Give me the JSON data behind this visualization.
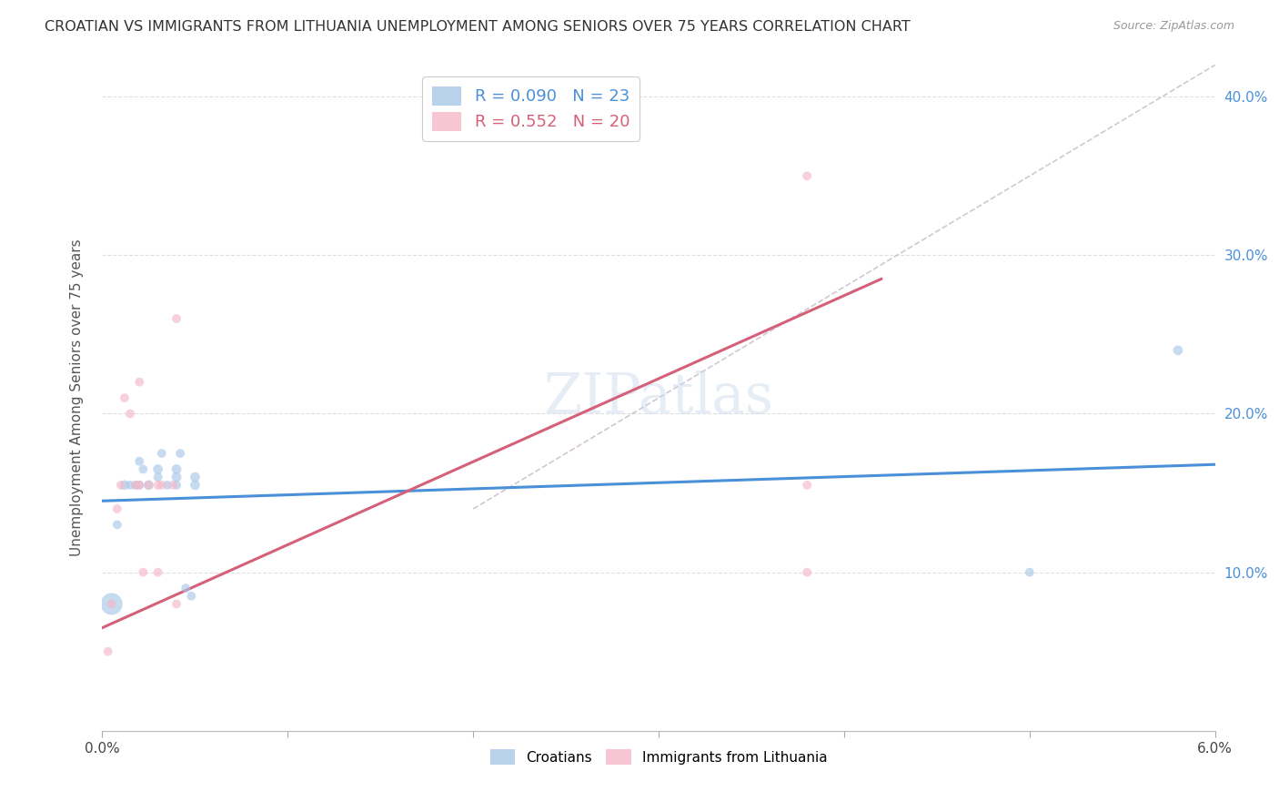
{
  "title": "CROATIAN VS IMMIGRANTS FROM LITHUANIA UNEMPLOYMENT AMONG SENIORS OVER 75 YEARS CORRELATION CHART",
  "source": "Source: ZipAtlas.com",
  "ylabel": "Unemployment Among Seniors over 75 years",
  "xlim": [
    0.0,
    0.06
  ],
  "ylim": [
    0.0,
    0.42
  ],
  "xticks": [
    0.0,
    0.01,
    0.02,
    0.03,
    0.04,
    0.05,
    0.06
  ],
  "xticklabels": [
    "0.0%",
    "",
    "",
    "",
    "",
    "",
    "6.0%"
  ],
  "yticks": [
    0.0,
    0.1,
    0.2,
    0.3,
    0.4
  ],
  "right_ytick_labels": [
    "10.0%",
    "20.0%",
    "30.0%",
    "40.0%"
  ],
  "croatians_R": 0.09,
  "croatians_N": 23,
  "lithuania_R": 0.552,
  "lithuania_N": 20,
  "blue_color": "#a8c8e8",
  "pink_color": "#f4b8c8",
  "blue_line_color": "#4a90d9",
  "pink_line_color": "#d4607a",
  "dashed_line_color": "#c8b8c8",
  "legend_blue_text": "#4a90d9",
  "legend_pink_text": "#d4607a",
  "legend_n_color": "#cc2222",
  "croatians_x": [
    0.0005,
    0.0008,
    0.0012,
    0.0015,
    0.0018,
    0.002,
    0.002,
    0.0022,
    0.0025,
    0.003,
    0.003,
    0.0032,
    0.0035,
    0.004,
    0.004,
    0.004,
    0.0042,
    0.0045,
    0.0048,
    0.005,
    0.005,
    0.05,
    0.058
  ],
  "croatians_y": [
    0.08,
    0.13,
    0.155,
    0.155,
    0.155,
    0.17,
    0.155,
    0.165,
    0.155,
    0.16,
    0.165,
    0.175,
    0.155,
    0.155,
    0.16,
    0.165,
    0.175,
    0.09,
    0.085,
    0.155,
    0.16,
    0.1,
    0.24
  ],
  "croatians_size": [
    300,
    50,
    60,
    50,
    50,
    50,
    50,
    50,
    60,
    50,
    60,
    50,
    50,
    50,
    60,
    60,
    50,
    50,
    50,
    60,
    60,
    50,
    60
  ],
  "lithuanians_x": [
    0.0003,
    0.0005,
    0.0008,
    0.001,
    0.0012,
    0.0015,
    0.0018,
    0.002,
    0.002,
    0.0022,
    0.0025,
    0.003,
    0.003,
    0.0032,
    0.0038,
    0.004,
    0.004,
    0.038,
    0.038,
    0.038
  ],
  "lithuanians_y": [
    0.05,
    0.08,
    0.14,
    0.155,
    0.21,
    0.2,
    0.155,
    0.155,
    0.22,
    0.1,
    0.155,
    0.1,
    0.155,
    0.155,
    0.155,
    0.08,
    0.26,
    0.155,
    0.35,
    0.1
  ],
  "lithuanians_size": [
    50,
    50,
    50,
    50,
    50,
    50,
    50,
    50,
    50,
    50,
    50,
    50,
    50,
    50,
    50,
    50,
    50,
    50,
    50,
    50
  ],
  "blue_trend_x": [
    0.0,
    0.06
  ],
  "blue_trend_y": [
    0.145,
    0.168
  ],
  "pink_trend_x": [
    0.0,
    0.042
  ],
  "pink_trend_y": [
    0.065,
    0.285
  ],
  "diag_line_x": [
    0.02,
    0.06
  ],
  "diag_line_y": [
    0.14,
    0.42
  ],
  "background_color": "#ffffff",
  "grid_color": "#e0e0e0"
}
